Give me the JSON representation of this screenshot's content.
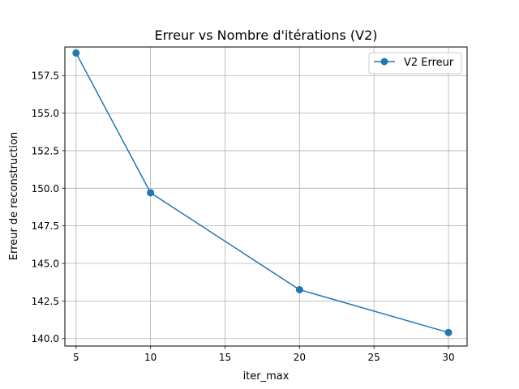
{
  "chart_data": {
    "type": "line",
    "title": "Erreur vs Nombre d'itérations (V2)",
    "xlabel": "iter_max",
    "ylabel": "Erreur de reconstruction",
    "xlim": [
      4.25,
      31.25
    ],
    "ylim": [
      139.5,
      159.4
    ],
    "x_ticks": [
      5,
      10,
      15,
      20,
      25,
      30
    ],
    "x_tick_labels": [
      "5",
      "10",
      "15",
      "20",
      "25",
      "30"
    ],
    "y_ticks": [
      140.0,
      142.5,
      145.0,
      147.5,
      150.0,
      152.5,
      155.0,
      157.5
    ],
    "y_tick_labels": [
      "140.0",
      "142.5",
      "145.0",
      "147.5",
      "150.0",
      "152.5",
      "155.0",
      "157.5"
    ],
    "grid": true,
    "legend_position": "top-right",
    "series": [
      {
        "name": "V2 Erreur",
        "color": "#1f77b4",
        "marker": "circle",
        "x": [
          5,
          10,
          20,
          30
        ],
        "y": [
          159.0,
          149.7,
          143.25,
          140.4
        ]
      }
    ]
  }
}
